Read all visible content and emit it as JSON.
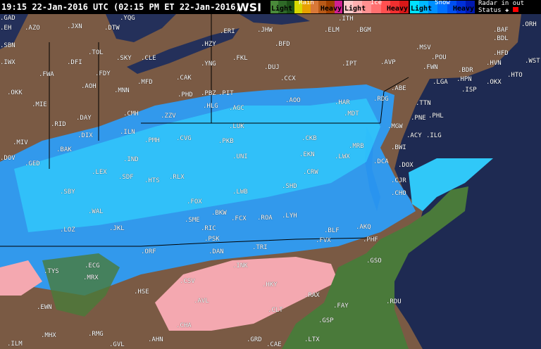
{
  "header": {
    "timestamp": "19:15 22-Jan-2016 UTC  (02:15 PM ET 22-Jan-2016)",
    "logo": "WSI",
    "legend": [
      {
        "title": "Rain",
        "light": "Light",
        "heavy": "Heavy",
        "colors": [
          "#4a8a3a",
          "#2f6a28",
          "#1d5018",
          "#d8d800",
          "#e8a000",
          "#d87838",
          "#b85a18",
          "#a04000",
          "#d02090"
        ]
      },
      {
        "title": "Ice",
        "light": "Light",
        "heavy": "Heavy",
        "colors": [
          "#ffc8c8",
          "#ffb0b0",
          "#ff9090",
          "#ff7070",
          "#ff5050",
          "#f03030",
          "#d81818"
        ]
      },
      {
        "title": "Snow",
        "light": "Light",
        "heavy": "Heavy",
        "colors": [
          "#00e0ff",
          "#00b8ff",
          "#0090ff",
          "#0070ff",
          "#0050f0",
          "#0030d8",
          "#0018b0"
        ]
      }
    ],
    "radar_status": {
      "title": "Radar in out",
      "status_label": "Status"
    }
  },
  "colors": {
    "land": "#7a5a44",
    "water": "#1e2a52",
    "lake": "#24305a"
  },
  "cities": [
    "EH",
    "AZO",
    "JXN",
    "DTW",
    "YQG",
    "ERI",
    "JHW",
    "ELM",
    "BGM",
    "ITH",
    "BAF",
    "ORH",
    "BDL",
    "SBN",
    "TOL",
    "SKY",
    "CLE",
    "HZY",
    "BFD",
    "HFD",
    "IWX",
    "DFI",
    "FWA",
    "FDY",
    "YNG",
    "FKL",
    "DUJ",
    "IPT",
    "AVP",
    "MSV",
    "POU",
    "BDR",
    "WST",
    "AOH",
    "MFD",
    "MNN",
    "CAK",
    "CCX",
    "FWN",
    "HPN",
    "HVN",
    "HTO",
    "OKK",
    "MIE",
    "PHD",
    "PBZ",
    "PIT",
    "AGC",
    "AOO",
    "ABE",
    "TTN",
    "LGA",
    "ISP",
    "OKX",
    "RID",
    "DAY",
    "CMH",
    "ZZV",
    "HLG",
    "HAR",
    "MDT",
    "RDG",
    "PNE",
    "PHL",
    "DIX",
    "ILN",
    "LUK",
    "MGW",
    "ILG",
    "ACY",
    "MIV",
    "BAK",
    "CVG",
    "PKB",
    "CKB",
    "MRB",
    "BWI",
    "DOV",
    "IND",
    "PMH",
    "UNI",
    "EKN",
    "LWX",
    "DCA",
    "DOX",
    "GED",
    "SDF",
    "HTS",
    "RLX",
    "CRW",
    "CJR",
    "SBY",
    "LEX",
    "FOX",
    "BKW",
    "LWB",
    "SHD",
    "CHO",
    "WAL",
    "JKL",
    "LOZ",
    "SME",
    "BLF",
    "RIC",
    "PSK",
    "FCX",
    "ROA",
    "LYH",
    "FVX",
    "AKQ",
    "PHF",
    "ORF",
    "TRI",
    "DAN",
    "INK",
    "GSO",
    "ECG",
    "MRX",
    "TYS",
    "CSV",
    "HKY",
    "RAX",
    "RDU",
    "HSE",
    "AVL",
    "CLT",
    "FAY",
    "EWN",
    "CHA",
    "GSP",
    "MHX",
    "RMG",
    "GVL",
    "AHN",
    "GRD",
    "CAE",
    "LTX",
    "ILM",
    "GAD"
  ]
}
